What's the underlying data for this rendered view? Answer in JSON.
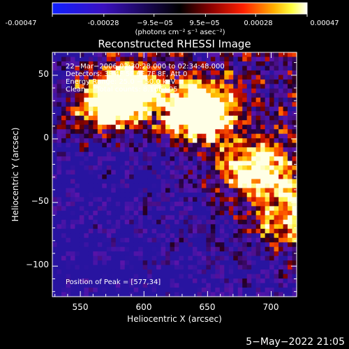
{
  "colorbar": {
    "ticks": [
      "-0.00047",
      "-0.00028",
      "−9.5e−05",
      "9.5e−05",
      "0.00028",
      "0.00047"
    ],
    "tick_values": [
      -0.00047,
      -0.00028,
      -9.5e-05,
      9.5e-05,
      0.00028,
      0.00047
    ],
    "range": [
      -0.00047,
      0.00047
    ],
    "unit_label": "(photons cm⁻² s⁻¹ asec⁻²)",
    "colors": [
      "#0020ff",
      "#000000",
      "#ff0000",
      "#ffff00",
      "#ffffff"
    ]
  },
  "chart_data": {
    "type": "heatmap",
    "title": "Reconstructed RHESSI Image",
    "xlabel": "Heliocentric X (arcsec)",
    "ylabel": "Heliocentric Y (arcsec)",
    "xlim": [
      528,
      720
    ],
    "ylim": [
      -124,
      68
    ],
    "xticks": [
      550,
      600,
      650,
      700
    ],
    "yticks": [
      50,
      0,
      -50,
      -100
    ],
    "ytick_labels": [
      "50",
      "0",
      "−50",
      "−100"
    ],
    "annotations": [
      "22−Mar−2006 02:30:28.000 to 02:34:48.000",
      "Detectors: 3F 4F 5F 6F 7F 8F, Att 0",
      "Energy Range: 25.0 − 50.0 keV",
      "Clean     Total counts: 8.16E+05"
    ],
    "peak_label": "Position of Peak = [577,34]",
    "peak": [
      577,
      34
    ],
    "bright_regions": [
      {
        "x": 577,
        "y": 34,
        "level": 1.0
      },
      {
        "x": 595,
        "y": 40,
        "level": 0.9
      },
      {
        "x": 650,
        "y": 25,
        "level": 0.85
      },
      {
        "x": 638,
        "y": 15,
        "level": 0.75
      },
      {
        "x": 560,
        "y": 20,
        "level": 0.6
      },
      {
        "x": 682,
        "y": -22,
        "level": 0.7
      },
      {
        "x": 712,
        "y": -65,
        "level": 0.75
      },
      {
        "x": 700,
        "y": -30,
        "level": 0.5
      }
    ],
    "grid": false
  },
  "footer": {
    "date": "5−May−2022 21:05"
  }
}
